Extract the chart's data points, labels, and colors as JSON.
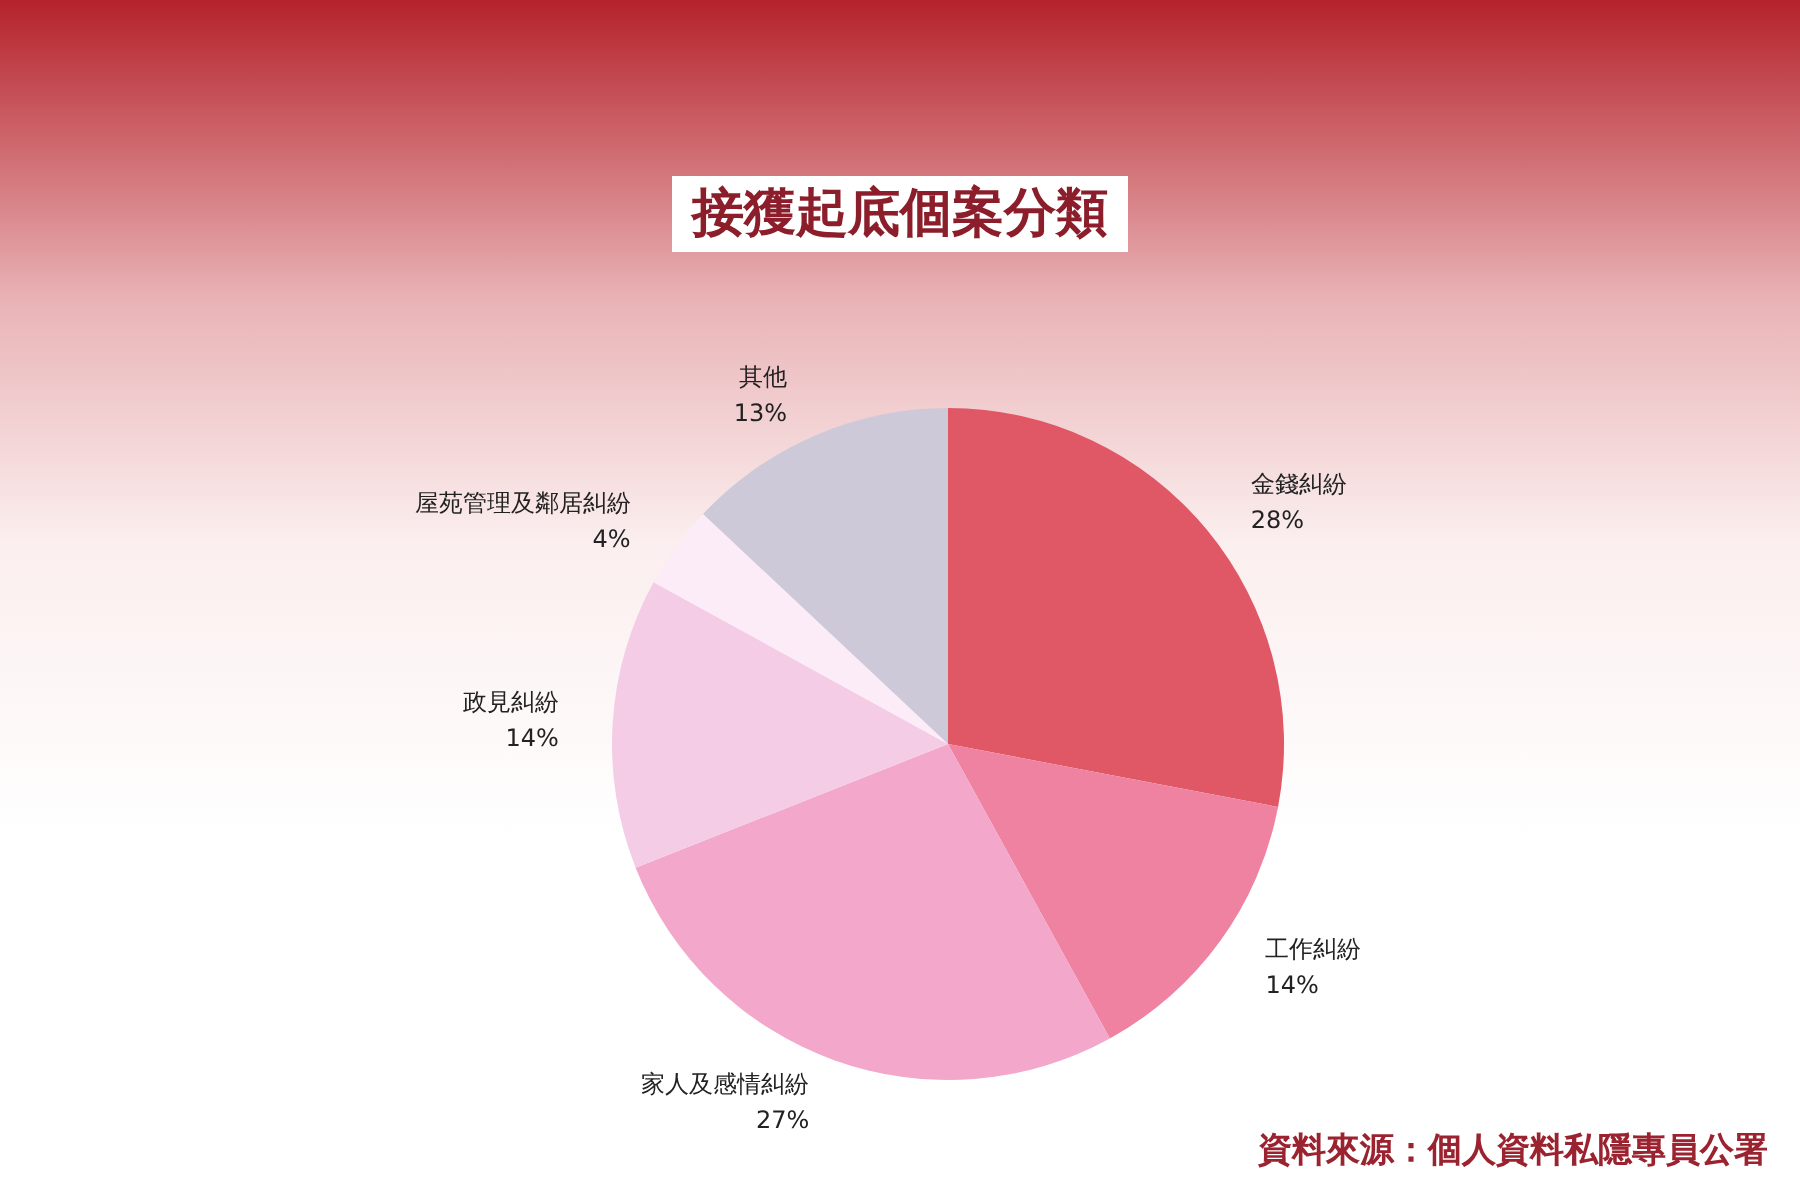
{
  "chart_data": {
    "type": "pie",
    "title": "接獲起底個案分類",
    "categories": [
      "金錢糾紛",
      "工作糾紛",
      "家人及感情糾紛",
      "政見糾紛",
      "屋苑管理及鄰居糾紛",
      "其他"
    ],
    "values": [
      28,
      14,
      27,
      14,
      4,
      13
    ],
    "value_labels": [
      "28%",
      "14%",
      "27%",
      "14%",
      "4%",
      "13%"
    ],
    "colors": [
      "#e05766",
      "#ee82a0",
      "#f2a7cb",
      "#f5cce6",
      "#fcecf8",
      "#cdc9d8"
    ],
    "legend": false,
    "annotations": [
      "資料來源：個人資料私隱專員公署"
    ]
  }
}
